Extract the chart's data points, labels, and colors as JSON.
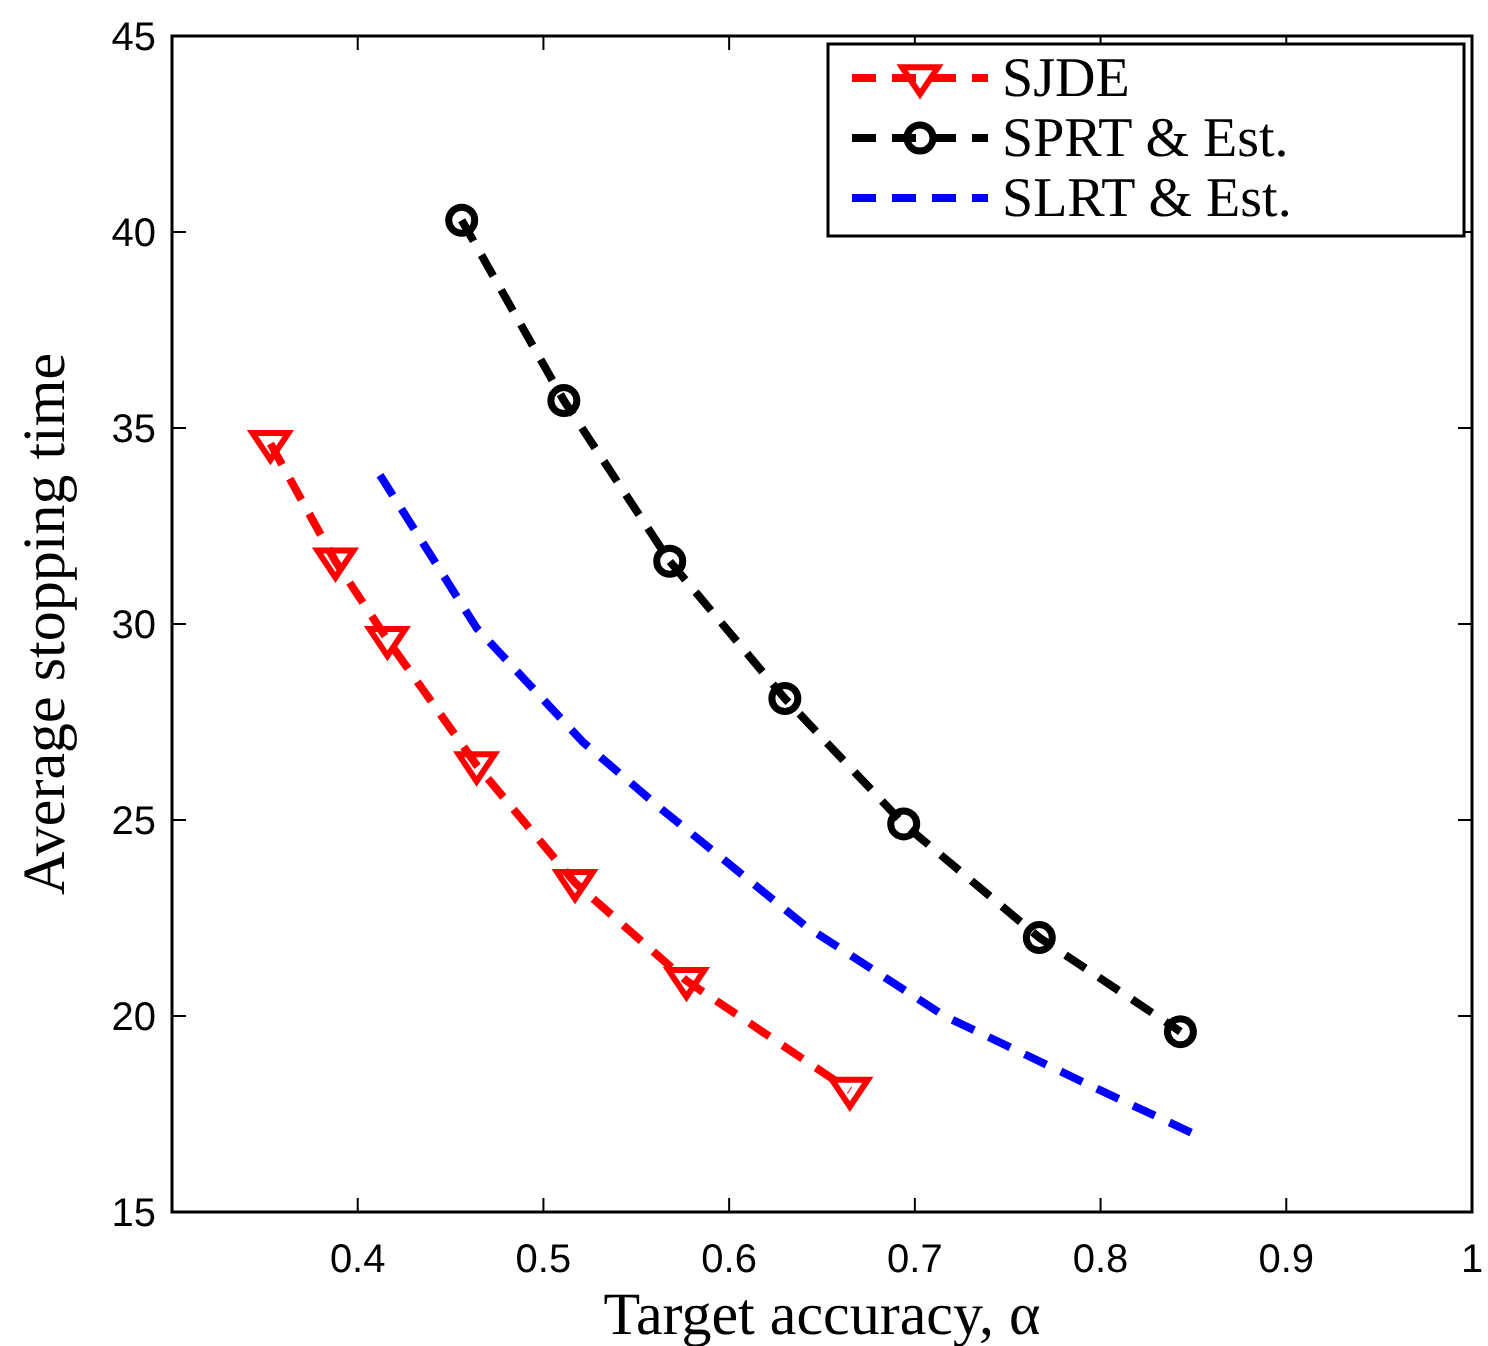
{
  "chart_data": {
    "type": "line",
    "xlabel": "Target accuracy, α",
    "ylabel": "Average stopping time",
    "xlim": [
      0.3,
      1
    ],
    "xticks": [
      0.4,
      0.5,
      0.6,
      0.7,
      0.8,
      0.9,
      1
    ],
    "ylim": [
      15,
      45
    ],
    "yticks": [
      15,
      20,
      25,
      30,
      35,
      40,
      45
    ],
    "grid": false,
    "legend": "top right",
    "line_style": "dashed",
    "series": [
      {
        "name": "SJDE",
        "color": "#ff0000",
        "marker": "triangle",
        "x": [
          0.353,
          0.388,
          0.416,
          0.464,
          0.517,
          0.577,
          0.665
        ],
        "values": [
          34.6,
          31.6,
          29.6,
          26.4,
          23.4,
          20.9,
          18.1
        ]
      },
      {
        "name": "SPRT & Est.",
        "color": "#000000",
        "marker": "circle",
        "x": [
          0.456,
          0.511,
          0.568,
          0.63,
          0.694,
          0.767,
          0.843
        ],
        "values": [
          40.3,
          35.7,
          31.6,
          28.1,
          24.9,
          22.0,
          19.6
        ]
      },
      {
        "name": "SLRT & Est.",
        "color": "#0000ff",
        "marker": "none",
        "x": [
          0.412,
          0.464,
          0.521,
          0.563,
          0.641,
          0.716,
          0.8,
          0.85
        ],
        "values": [
          33.8,
          29.9,
          27.0,
          25.3,
          22.3,
          20.0,
          18.1,
          17.0
        ]
      }
    ]
  }
}
